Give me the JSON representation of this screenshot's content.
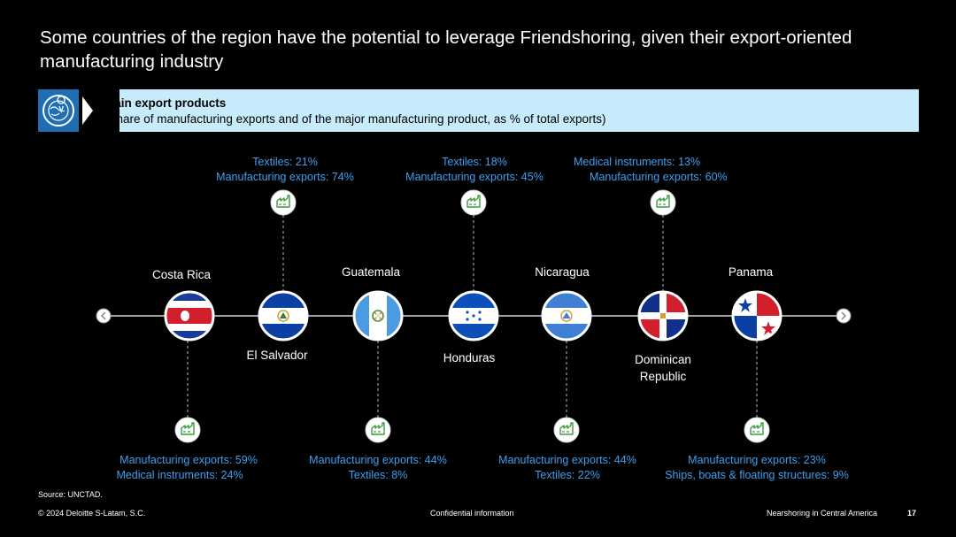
{
  "title": "Some countries of the region have the potential to leverage Friendshoring, given their export-oriented manufacturing industry",
  "banner": {
    "heading": "Main export products",
    "subheading": "(Share of manufacturing exports and of the major manufacturing product, as % of total exports)",
    "icon": "globe-location-icon",
    "colors": {
      "icon_bg": "#1f6db3",
      "banner_bg": "#c6ebfb"
    }
  },
  "timeline": {
    "prev_icon": "chevron-left-icon",
    "next_icon": "chevron-right-icon",
    "factory_icon": "factory-icon",
    "countries": [
      {
        "name": "Costa Rica",
        "flag": "flag-costa-rica",
        "lines": [
          "Manufacturing exports: 59%",
          "Medical instruments: 24%"
        ]
      },
      {
        "name": "El Salvador",
        "flag": "flag-el-salvador",
        "lines": [
          "Textiles: 21%",
          "Manufacturing exports: 74%"
        ]
      },
      {
        "name": "Guatemala",
        "flag": "flag-guatemala",
        "lines": [
          "Manufacturing exports: 44%",
          "Textiles: 8%"
        ]
      },
      {
        "name": "Honduras",
        "flag": "flag-honduras",
        "lines": [
          "Textiles: 18%",
          "Manufacturing exports: 45%"
        ]
      },
      {
        "name": "Nicaragua",
        "flag": "flag-nicaragua",
        "lines": [
          "Manufacturing exports: 44%",
          "Textiles: 22%"
        ]
      },
      {
        "name_line1": "Dominican",
        "name_line2": "Republic",
        "flag": "flag-dominican-republic",
        "lines": [
          "Medical instruments: 13%",
          "Manufacturing exports: 60%"
        ]
      },
      {
        "name": "Panama",
        "flag": "flag-panama",
        "lines": [
          "Manufacturing exports: 23%",
          "Ships, boats & floating structures: 9%"
        ]
      }
    ],
    "colors": {
      "info_text": "#3ea0f0",
      "factory_icon": "#3a9b3a"
    }
  },
  "source": "Source: UNCTAD.",
  "footer": {
    "copyright": "© 2024 Deloitte S-Latam, S.C.",
    "confidential": "Confidential information",
    "deck": "Nearshoring in Central America",
    "page": "17"
  }
}
